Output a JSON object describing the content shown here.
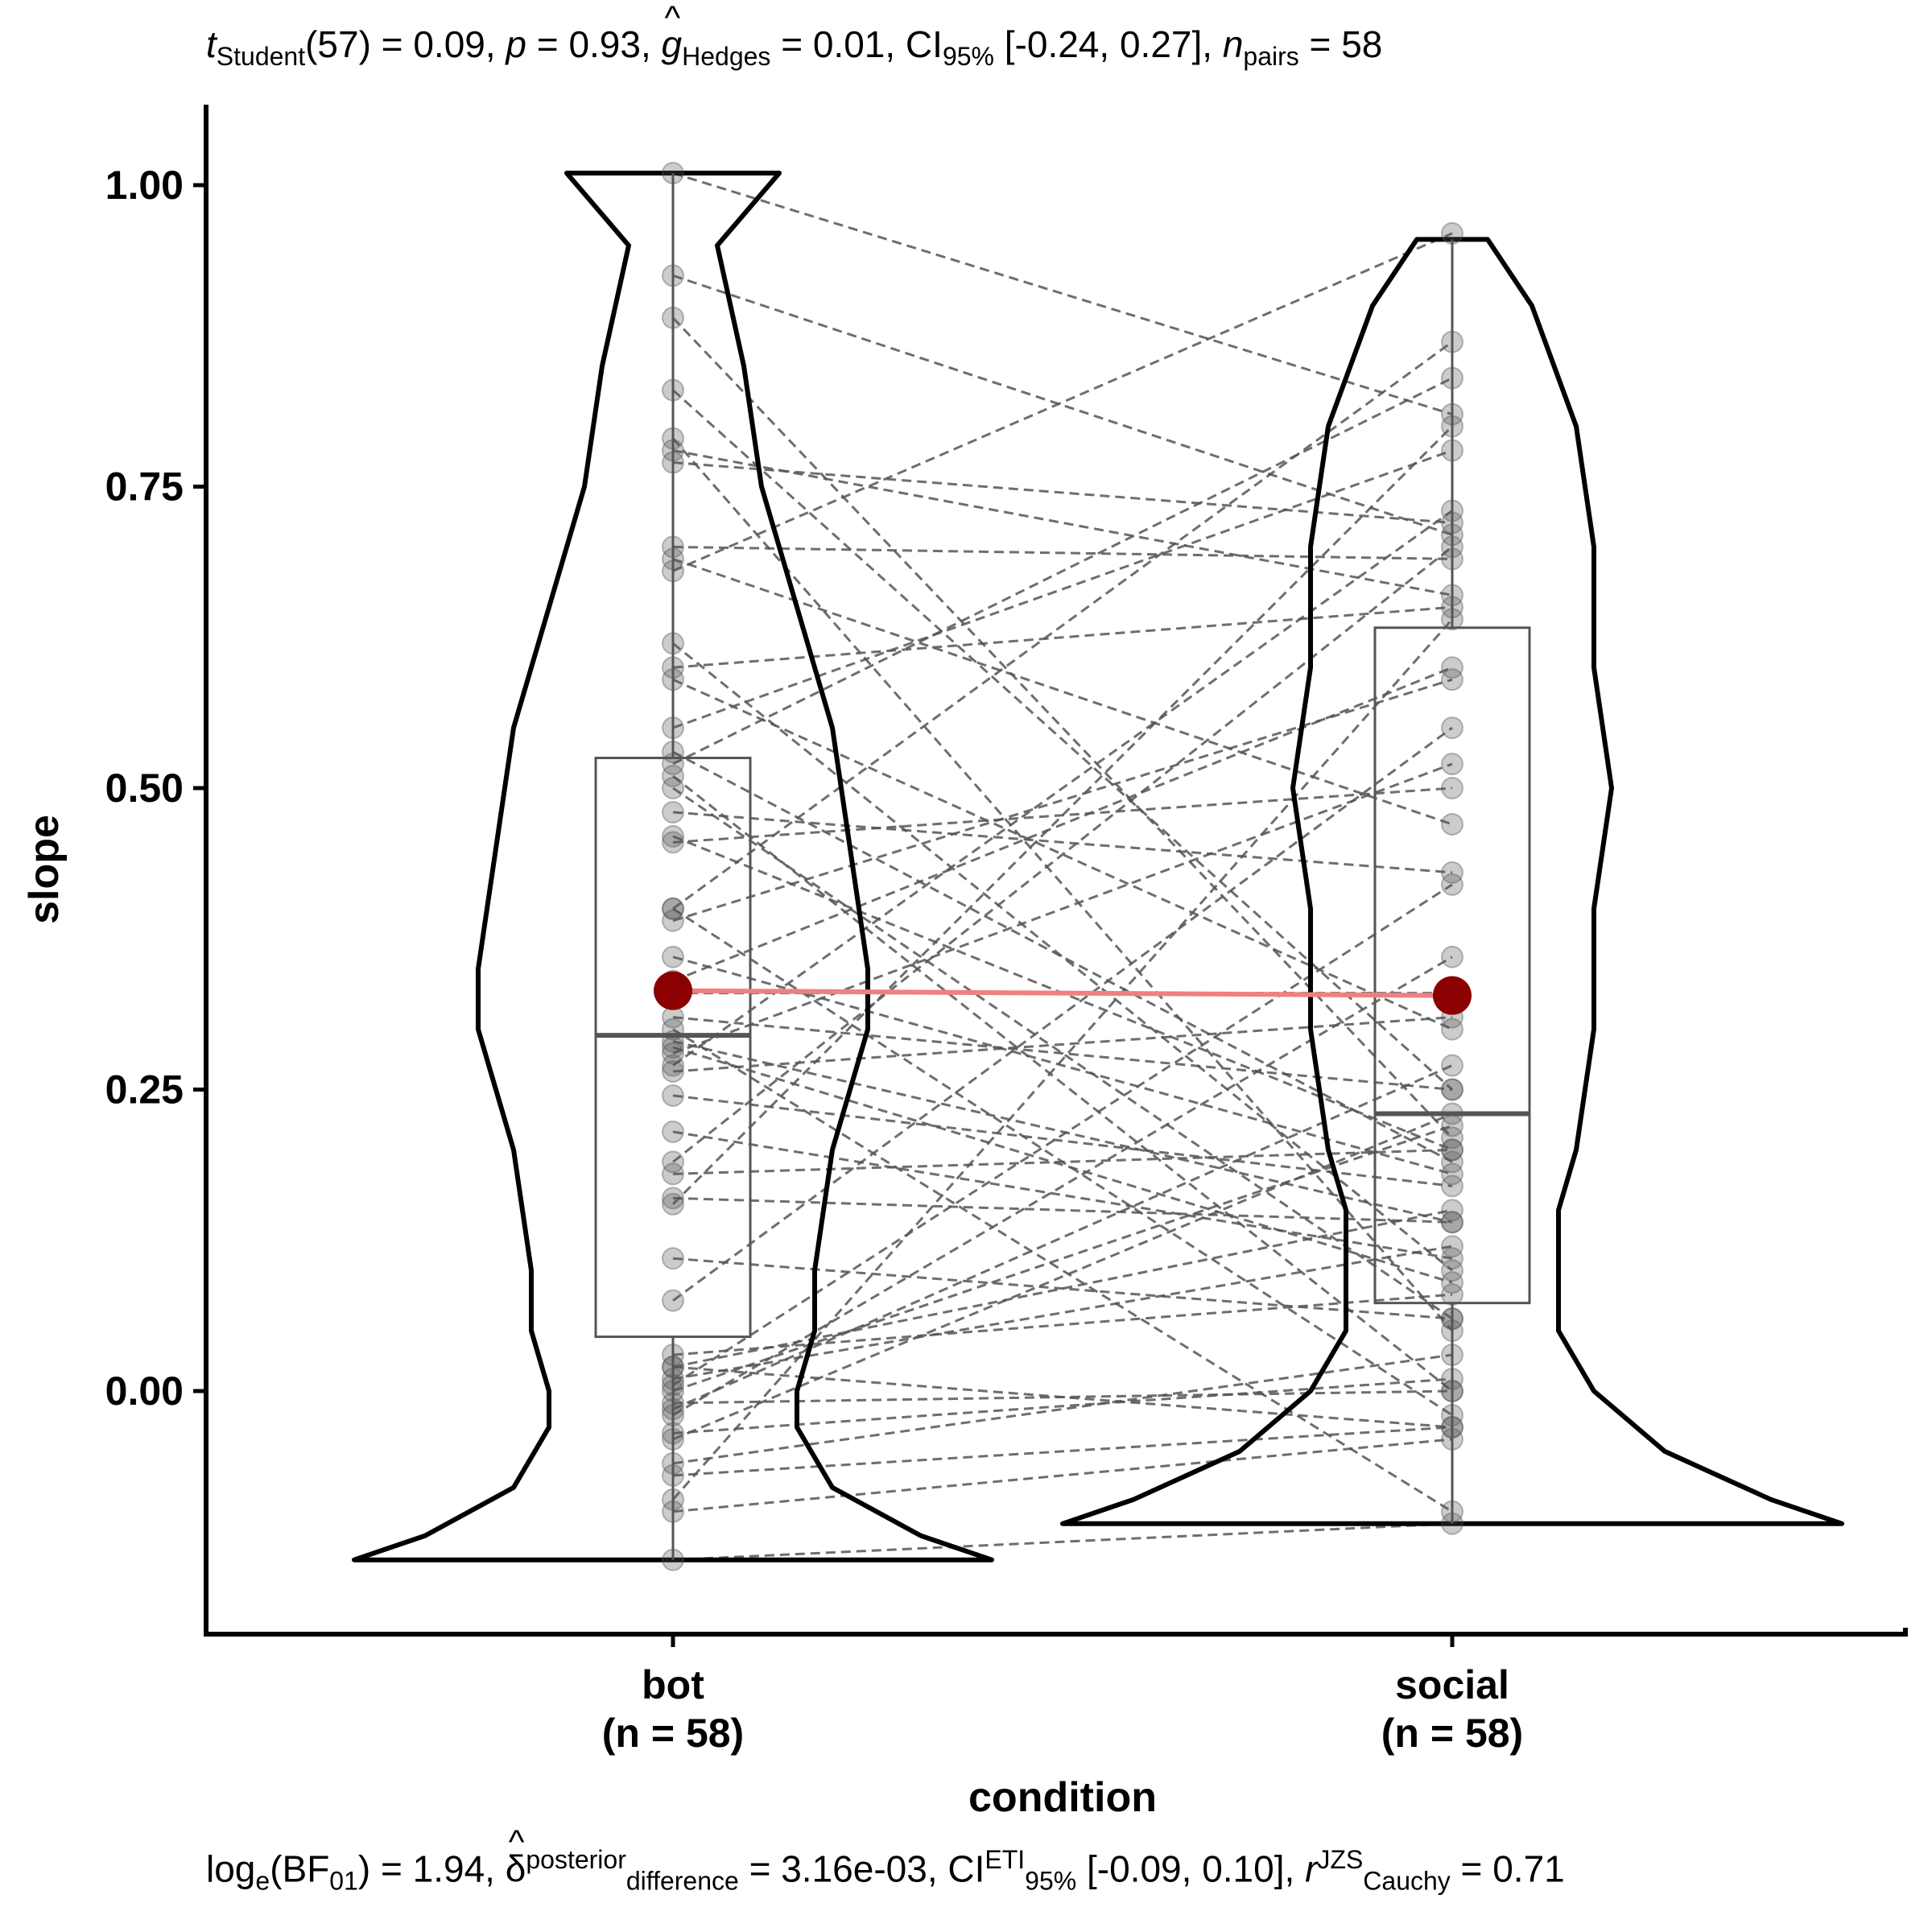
{
  "stats": {
    "top": {
      "t_label": "t",
      "t_sub": "Student",
      "t_df": "(57)",
      "t_val": " = 0.09, ",
      "p_label": "p",
      "p_val": " = 0.93, ",
      "g_label": "g",
      "g_sub": "Hedges",
      "g_val": " = 0.01, CI",
      "ci_sub": "95%",
      "ci_val": " [-0.24, 0.27], ",
      "n_label": "n",
      "n_sub": "pairs",
      "n_val": " = 58"
    },
    "bottom": {
      "log_label": "log",
      "log_sub": "e",
      "bf": "(BF",
      "bf_sub": "01",
      "bf_val": ") = 1.94, ",
      "delta": "δ",
      "delta_sup": "posterior",
      "delta_sub": "difference",
      "delta_val": " = 3.16e-03, CI",
      "ci_sup": "ETI",
      "ci_sub": "95%",
      "ci_val": " [-0.09, 0.10], ",
      "r_label": "r",
      "r_sup": "JZS",
      "r_sub": "Cauchy",
      "r_val": " = 0.71"
    }
  },
  "chart_data": {
    "type": "violin-box-paired",
    "xlabel": "condition",
    "ylabel": "slope",
    "ylim": [
      -0.2,
      1.07
    ],
    "yticks": [
      0.0,
      0.25,
      0.5,
      0.75,
      1.0
    ],
    "ytick_labels": [
      "0.00",
      "0.25",
      "0.50",
      "0.75",
      "1.00"
    ],
    "categories": [
      {
        "name": "bot",
        "n_label": "(n = 58)"
      },
      {
        "name": "social",
        "n_label": "(n = 58)"
      }
    ],
    "colors": {
      "mean": "#8b0000",
      "mean_line": "#f08080",
      "points": "#555555",
      "pair_lines": "#555555",
      "violin": "#000000",
      "box": "#555555"
    },
    "boxes": [
      {
        "name": "bot",
        "q1": 0.045,
        "median": 0.295,
        "q3": 0.525,
        "whisker_low": -0.14,
        "whisker_high": 1.01,
        "mean": 0.332
      },
      {
        "name": "social",
        "q1": 0.073,
        "median": 0.23,
        "q3": 0.633,
        "whisker_low": -0.11,
        "whisker_high": 0.955,
        "mean": 0.328
      }
    ],
    "violins": [
      {
        "name": "bot",
        "profile": [
          [
            -0.14,
            0.18
          ],
          [
            -0.12,
            0.14
          ],
          [
            -0.08,
            0.09
          ],
          [
            -0.03,
            0.07
          ],
          [
            0.0,
            0.07
          ],
          [
            0.05,
            0.08
          ],
          [
            0.1,
            0.08
          ],
          [
            0.2,
            0.09
          ],
          [
            0.3,
            0.11
          ],
          [
            0.35,
            0.11
          ],
          [
            0.45,
            0.1
          ],
          [
            0.55,
            0.09
          ],
          [
            0.65,
            0.07
          ],
          [
            0.75,
            0.05
          ],
          [
            0.85,
            0.04
          ],
          [
            0.95,
            0.025
          ],
          [
            1.01,
            0.06
          ]
        ]
      },
      {
        "name": "social",
        "profile": [
          [
            -0.11,
            0.22
          ],
          [
            -0.09,
            0.18
          ],
          [
            -0.05,
            0.12
          ],
          [
            0.0,
            0.08
          ],
          [
            0.05,
            0.06
          ],
          [
            0.1,
            0.06
          ],
          [
            0.15,
            0.06
          ],
          [
            0.2,
            0.07
          ],
          [
            0.3,
            0.08
          ],
          [
            0.4,
            0.08
          ],
          [
            0.5,
            0.09
          ],
          [
            0.6,
            0.08
          ],
          [
            0.7,
            0.08
          ],
          [
            0.8,
            0.07
          ],
          [
            0.9,
            0.045
          ],
          [
            0.955,
            0.02
          ]
        ]
      }
    ],
    "pairs": [
      [
        1.01,
        0.81
      ],
      [
        0.925,
        0.71
      ],
      [
        0.89,
        0.21
      ],
      [
        0.83,
        0.25
      ],
      [
        0.79,
        0.05
      ],
      [
        0.78,
        0.66
      ],
      [
        0.77,
        0.72
      ],
      [
        0.7,
        0.69
      ],
      [
        0.69,
        0.47
      ],
      [
        0.68,
        0.96
      ],
      [
        0.62,
        0.1
      ],
      [
        0.6,
        0.65
      ],
      [
        0.59,
        0.3
      ],
      [
        0.55,
        0.78
      ],
      [
        0.53,
        0.19
      ],
      [
        0.52,
        0.84
      ],
      [
        0.51,
        0.0
      ],
      [
        0.48,
        0.43
      ],
      [
        0.46,
        0.2
      ],
      [
        0.455,
        0.5
      ],
      [
        0.4,
        0.87
      ],
      [
        0.39,
        0.59
      ],
      [
        0.36,
        0.18
      ],
      [
        0.34,
        0.6
      ],
      [
        0.33,
        0.33
      ],
      [
        0.31,
        0.25
      ],
      [
        0.3,
        -0.1
      ],
      [
        0.29,
        0.14
      ],
      [
        0.28,
        0.52
      ],
      [
        0.27,
        0.73
      ],
      [
        0.265,
        0.31
      ],
      [
        0.215,
        0.11
      ],
      [
        0.19,
        0.7
      ],
      [
        0.18,
        0.2
      ],
      [
        0.16,
        0.14
      ],
      [
        0.155,
        0.8
      ],
      [
        0.11,
        0.06
      ],
      [
        0.075,
        0.55
      ],
      [
        0.03,
        0.08
      ],
      [
        0.02,
        -0.03
      ],
      [
        0.01,
        0.12
      ],
      [
        0.0,
        0.22
      ],
      [
        -0.01,
        0.0
      ],
      [
        -0.02,
        0.36
      ],
      [
        -0.035,
        0.01
      ],
      [
        -0.04,
        0.23
      ],
      [
        -0.06,
        0.03
      ],
      [
        -0.07,
        -0.03
      ],
      [
        -0.09,
        0.64
      ],
      [
        -0.1,
        -0.04
      ],
      [
        0.02,
        0.15
      ],
      [
        0.005,
        0.42
      ],
      [
        -0.015,
        0.27
      ],
      [
        0.285,
        0.09
      ],
      [
        0.5,
        0.06
      ],
      [
        0.245,
        0.17
      ],
      [
        -0.14,
        -0.11
      ],
      [
        0.4,
        -0.02
      ]
    ]
  }
}
